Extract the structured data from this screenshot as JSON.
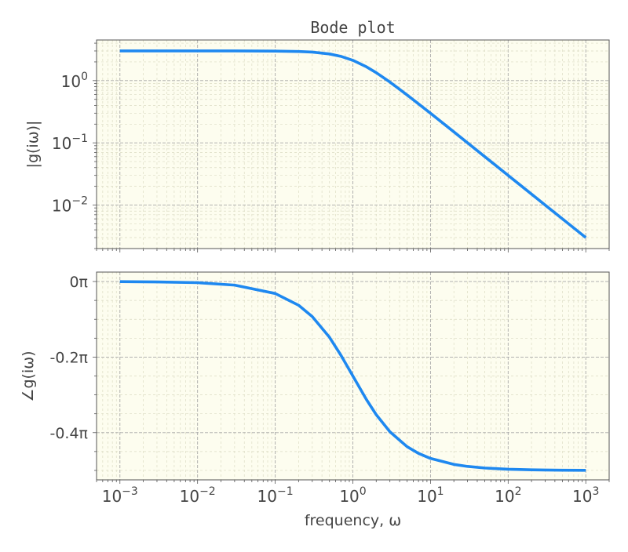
{
  "chart_data": [
    {
      "type": "line",
      "title": "Bode plot",
      "xlabel": "",
      "ylabel": "|g(iω)|",
      "x_scale": "log",
      "y_scale": "log",
      "xlim": [
        0.0005,
        2000
      ],
      "ylim": [
        0.002,
        4.5
      ],
      "x_ticks": [
        0.001,
        0.01,
        0.1,
        1,
        10,
        100,
        1000
      ],
      "y_ticks": [
        1,
        0.1,
        0.01
      ],
      "y_tick_labels": [
        {
          "base": "10",
          "exp": "0"
        },
        {
          "base": "10",
          "exp": "−1"
        },
        {
          "base": "10",
          "exp": "−2"
        }
      ],
      "grid": true,
      "series": [
        {
          "color": "#1e88f0",
          "x": [
            0.001,
            0.003,
            0.01,
            0.03,
            0.1,
            0.2,
            0.3,
            0.5,
            0.7,
            1,
            1.5,
            2,
            3,
            5,
            7,
            10,
            20,
            30,
            50,
            100,
            200,
            300,
            500,
            1000
          ],
          "y": [
            3.0,
            3.0,
            3.0,
            3.0,
            2.985,
            2.942,
            2.874,
            2.683,
            2.458,
            2.121,
            1.664,
            1.342,
            0.949,
            0.588,
            0.424,
            0.299,
            0.15,
            0.1,
            0.06,
            0.03,
            0.015,
            0.01,
            0.006,
            0.003
          ]
        }
      ]
    },
    {
      "type": "line",
      "title": "",
      "xlabel": "frequency, ω",
      "ylabel": "∠g(iω)",
      "x_scale": "log",
      "y_scale": "linear",
      "y_unit": "π",
      "xlim": [
        0.0005,
        2000
      ],
      "ylim": [
        -0.525,
        0.025
      ],
      "x_ticks": [
        0.001,
        0.01,
        0.1,
        1,
        10,
        100,
        1000
      ],
      "x_tick_labels": [
        {
          "base": "10",
          "exp": "−3"
        },
        {
          "base": "10",
          "exp": "−2"
        },
        {
          "base": "10",
          "exp": "−1"
        },
        {
          "base": "10",
          "exp": "0"
        },
        {
          "base": "10",
          "exp": "1"
        },
        {
          "base": "10",
          "exp": "2"
        },
        {
          "base": "10",
          "exp": "3"
        }
      ],
      "y_ticks": [
        0,
        -0.2,
        -0.4
      ],
      "y_tick_labels": [
        "0π",
        "-0.2π",
        "-0.4π"
      ],
      "grid": true,
      "series": [
        {
          "color": "#1e88f0",
          "x": [
            0.001,
            0.003,
            0.01,
            0.03,
            0.1,
            0.2,
            0.3,
            0.5,
            0.7,
            1,
            1.5,
            2,
            3,
            5,
            7,
            10,
            20,
            30,
            50,
            100,
            200,
            300,
            500,
            1000
          ],
          "y": [
            -0.0003,
            -0.001,
            -0.003,
            -0.0095,
            -0.0317,
            -0.0628,
            -0.0928,
            -0.1476,
            -0.1948,
            -0.25,
            -0.3128,
            -0.3524,
            -0.3976,
            -0.4372,
            -0.4548,
            -0.4683,
            -0.4841,
            -0.4894,
            -0.4936,
            -0.4968,
            -0.4984,
            -0.4989,
            -0.4994,
            -0.4997
          ]
        }
      ]
    }
  ]
}
